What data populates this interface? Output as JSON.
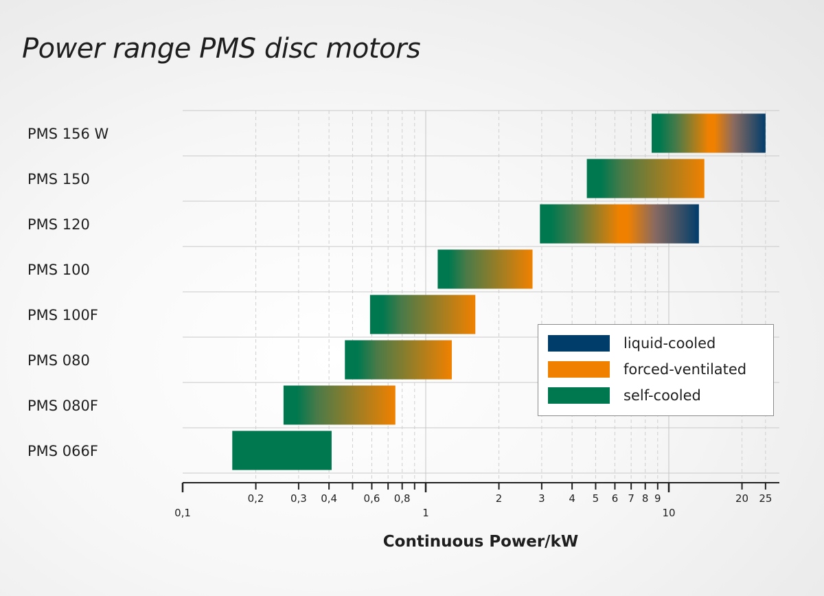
{
  "chart_data": {
    "type": "bar",
    "orientation": "horizontal-range",
    "title": "Power range PMS disc motors",
    "xlabel": "Continuous Power/kW",
    "xscale": "log",
    "xlim": [
      0.1,
      25
    ],
    "categories": [
      "PMS 156 W",
      "PMS 150",
      "PMS 120",
      "PMS 100",
      "PMS 100F",
      "PMS 080",
      "PMS 080F",
      "PMS 066F"
    ],
    "ranges": [
      {
        "name": "PMS 156 W",
        "min": 8.5,
        "max": 25,
        "cooling": [
          "self-cooled",
          "forced-ventilated",
          "liquid-cooled"
        ]
      },
      {
        "name": "PMS 150",
        "min": 4.6,
        "max": 14,
        "cooling": [
          "self-cooled",
          "forced-ventilated"
        ]
      },
      {
        "name": "PMS 120",
        "min": 2.95,
        "max": 13.3,
        "cooling": [
          "self-cooled",
          "forced-ventilated",
          "liquid-cooled"
        ]
      },
      {
        "name": "PMS 100",
        "min": 1.12,
        "max": 2.75,
        "cooling": [
          "self-cooled",
          "forced-ventilated"
        ]
      },
      {
        "name": "PMS 100F",
        "min": 0.59,
        "max": 1.6,
        "cooling": [
          "self-cooled",
          "forced-ventilated"
        ]
      },
      {
        "name": "PMS 080",
        "min": 0.465,
        "max": 1.28,
        "cooling": [
          "self-cooled",
          "forced-ventilated"
        ]
      },
      {
        "name": "PMS 080F",
        "min": 0.26,
        "max": 0.75,
        "cooling": [
          "self-cooled",
          "forced-ventilated"
        ]
      },
      {
        "name": "PMS 066F",
        "min": 0.16,
        "max": 0.41,
        "cooling": [
          "self-cooled"
        ]
      }
    ],
    "xticks_major": [
      {
        "value": 0.1,
        "label": "0,1"
      },
      {
        "value": 1,
        "label": "1"
      },
      {
        "value": 10,
        "label": "10"
      }
    ],
    "xticks_minor": [
      {
        "value": 0.2,
        "label": "0,2"
      },
      {
        "value": 0.3,
        "label": "0,3"
      },
      {
        "value": 0.4,
        "label": "0,4"
      },
      {
        "value": 0.5,
        "label": ""
      },
      {
        "value": 0.6,
        "label": "0,6"
      },
      {
        "value": 0.7,
        "label": ""
      },
      {
        "value": 0.8,
        "label": "0,8"
      },
      {
        "value": 0.9,
        "label": ""
      },
      {
        "value": 2,
        "label": "2"
      },
      {
        "value": 3,
        "label": "3"
      },
      {
        "value": 4,
        "label": "4"
      },
      {
        "value": 5,
        "label": "5"
      },
      {
        "value": 6,
        "label": "6"
      },
      {
        "value": 7,
        "label": "7"
      },
      {
        "value": 8,
        "label": "8"
      },
      {
        "value": 9,
        "label": "9"
      },
      {
        "value": 20,
        "label": "20"
      },
      {
        "value": 25,
        "label": "25"
      }
    ],
    "legend": {
      "position": "bottom-right",
      "entries": [
        {
          "label": "liquid-cooled",
          "color": "#003d6b"
        },
        {
          "label": "forced-ventilated",
          "color": "#f08100"
        },
        {
          "label": "self-cooled",
          "color": "#00784f"
        }
      ]
    },
    "colors": {
      "self": "#00784f",
      "forced": "#f08100",
      "liquid": "#003d6b"
    }
  }
}
